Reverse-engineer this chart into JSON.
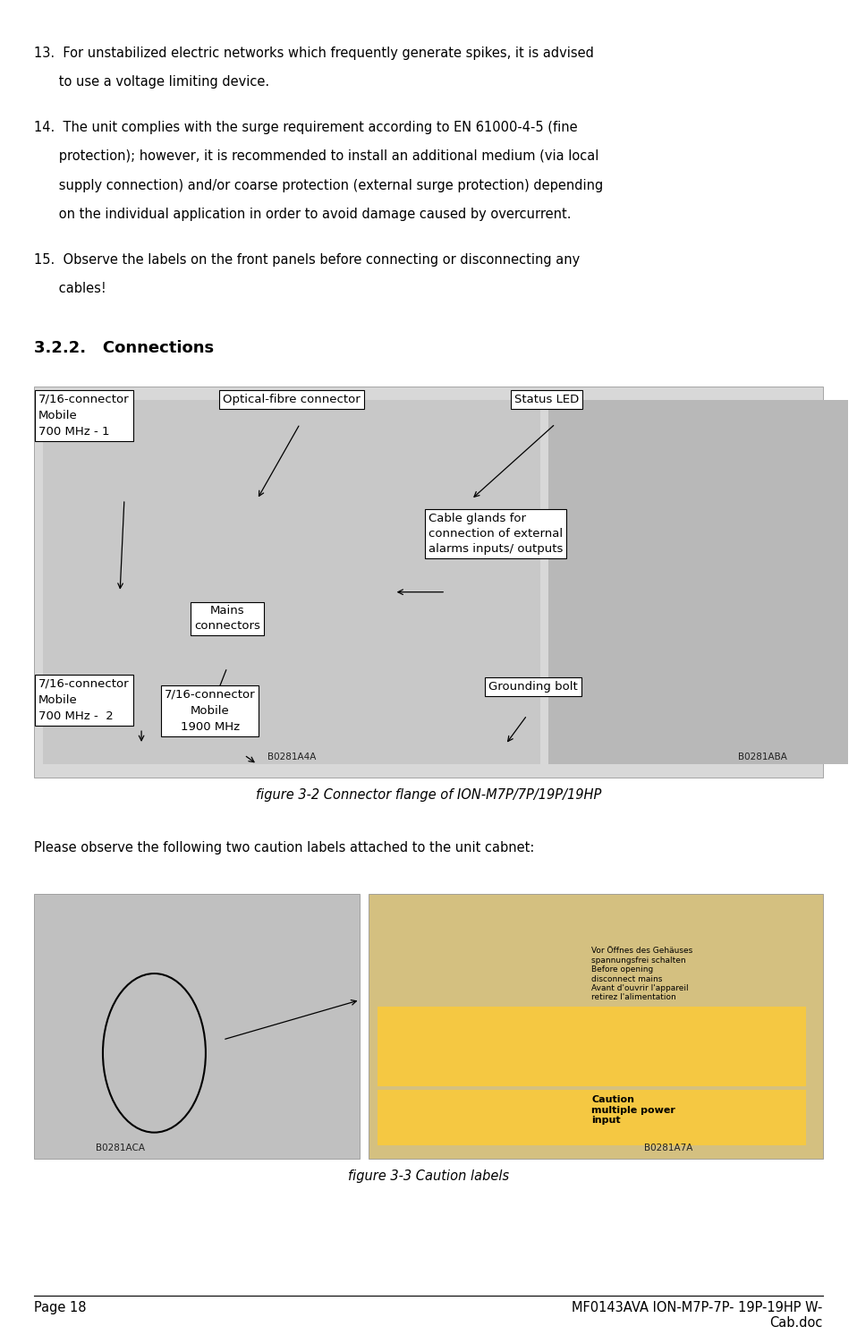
{
  "bg_color": "#ffffff",
  "text_color": "#000000",
  "label_716_1": "7/16-connector\nMobile\n700 MHz - 1",
  "label_optical": "Optical-fibre connector",
  "label_status": "Status LED",
  "label_cable_glands": "Cable glands for\nconnection of external\nalarms inputs/ outputs",
  "label_mains": "Mains\nconnectors",
  "label_716_2": "7/16-connector\nMobile\n700 MHz -  2",
  "label_716_3": "7/16-connector\nMobile\n1900 MHz",
  "label_grounding": "Grounding bolt",
  "section_title": "3.2.2.   Connections",
  "fig1_caption": "figure 3-2 Connector flange of ION-M7P/7P/19P/19HP",
  "fig2_caption": "figure 3-3 Caution labels",
  "please_text": "Please observe the following two caution labels attached to the unit cab​net:",
  "footer_left": "Page 18",
  "footer_right": "MF0143AVA ION-M7P-7P- 19P-19HP W-\nCab.doc",
  "body_fontsize": 10.5,
  "section_fontsize": 13,
  "caption_fontsize": 10.5,
  "footer_fontsize": 10.5
}
